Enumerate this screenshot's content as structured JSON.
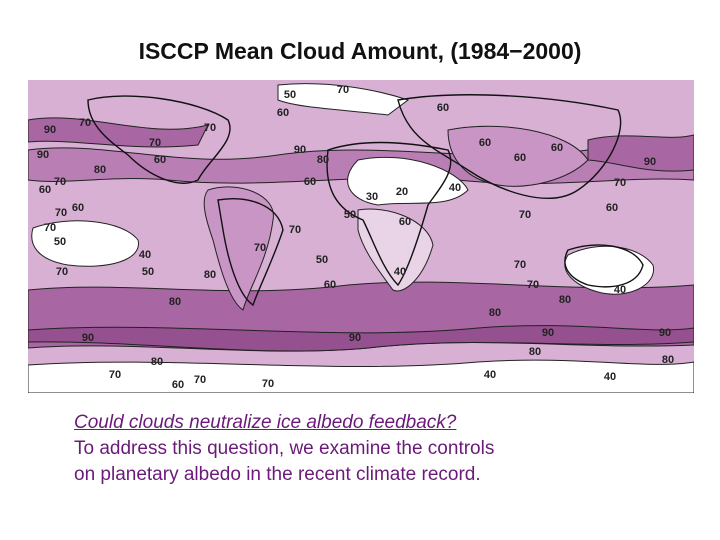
{
  "slide": {
    "title": "ISCCP Mean Cloud Amount, (1984−2000)",
    "map": {
      "contour_labels": [
        50,
        70,
        60,
        60,
        70,
        90,
        70,
        70,
        60,
        90,
        80,
        60,
        60,
        90,
        80,
        60,
        90,
        70,
        60,
        60,
        70,
        30,
        20,
        40,
        70,
        60,
        70,
        50,
        60,
        70,
        60,
        70,
        50,
        70,
        40,
        50,
        70,
        80,
        50,
        40,
        70,
        60,
        70,
        40,
        80,
        80,
        80,
        90,
        90,
        90,
        90,
        80,
        80,
        80,
        70,
        60,
        70,
        70,
        40,
        40
      ]
    },
    "question": "Could clouds neutralize ice albedo feedback?",
    "body_lines": [
      "To address this question, we examine the controls",
      "on planetary albedo in the recent climate record."
    ]
  }
}
